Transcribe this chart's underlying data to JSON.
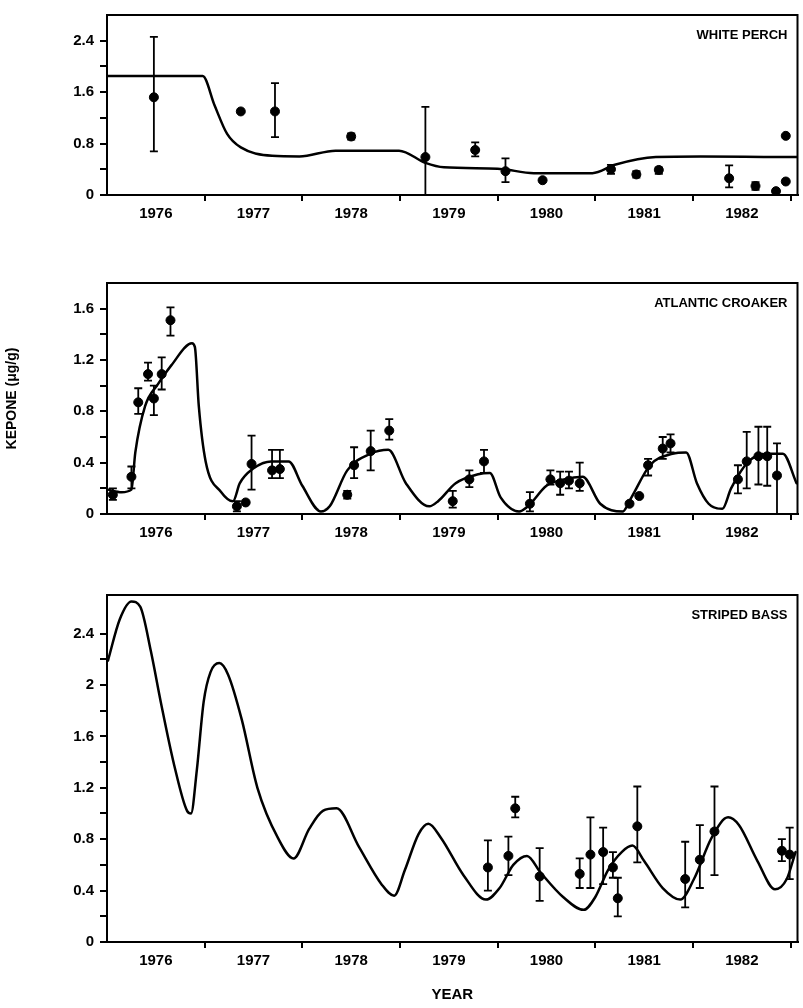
{
  "chart_data": [
    {
      "type": "scatter",
      "title": "WHITE PERCH",
      "xlim": [
        1976,
        1983.07
      ],
      "xticks": [
        {
          "value": 1976.5,
          "label": "1976"
        },
        {
          "value": 1977,
          "label": null
        },
        {
          "value": 1977.5,
          "label": "1977"
        },
        {
          "value": 1978,
          "label": null
        },
        {
          "value": 1978.5,
          "label": "1978"
        },
        {
          "value": 1979,
          "label": null
        },
        {
          "value": 1979.5,
          "label": "1979"
        },
        {
          "value": 1980,
          "label": null
        },
        {
          "value": 1980.5,
          "label": "1980"
        },
        {
          "value": 1981,
          "label": null
        },
        {
          "value": 1981.5,
          "label": "1981"
        },
        {
          "value": 1982,
          "label": null
        },
        {
          "value": 1982.5,
          "label": "1982"
        },
        {
          "value": 1983,
          "label": null
        }
      ],
      "ylim": [
        0,
        2.8
      ],
      "yticks": [
        0,
        {
          "value": 0.4,
          "label": null
        },
        0.8,
        {
          "value": 1.2,
          "label": null
        },
        1.6,
        {
          "value": 2.0,
          "label": null
        },
        2.4
      ],
      "grid": false,
      "series": [
        {
          "type": "line",
          "color": "#000000",
          "marker": "none",
          "line_style": "solid",
          "x": [
            1976.0,
            1976.98,
            1977.1,
            1977.23,
            1977.37,
            1977.69,
            1977.97,
            1978.34,
            1978.99,
            1979.26,
            1979.45,
            1980.0,
            1980.37,
            1980.97,
            1981.2,
            1981.62,
            1982.08,
            1982.98,
            1983.07
          ],
          "values": [
            1.85,
            1.85,
            1.4,
            0.95,
            0.74,
            0.61,
            0.6,
            0.69,
            0.69,
            0.5,
            0.43,
            0.41,
            0.34,
            0.34,
            0.47,
            0.59,
            0.6,
            0.59,
            0.59
          ]
        },
        {
          "type": "scatter",
          "color": "#000000",
          "marker": "circle",
          "x": [
            1976.48,
            1977.37,
            1977.72,
            1978.5,
            1979.26,
            1979.77,
            1980.08,
            1980.46,
            1981.16,
            1981.42,
            1981.65,
            1982.37,
            1982.64,
            1982.85,
            1982.95,
            1982.95
          ],
          "values": [
            1.52,
            1.3,
            1.3,
            0.91,
            0.59,
            0.7,
            0.37,
            0.23,
            0.4,
            0.32,
            0.39,
            0.26,
            0.14,
            0.06,
            0.92,
            0.21
          ],
          "errors": [
            [
              0.68,
              2.46
            ],
            null,
            [
              0.9,
              1.74
            ],
            [
              0.86,
              0.96
            ],
            [
              0,
              1.37
            ],
            [
              0.6,
              0.82
            ],
            [
              0.2,
              0.57
            ],
            null,
            [
              0.33,
              0.47
            ],
            [
              0.27,
              0.37
            ],
            [
              0.33,
              0.43
            ],
            [
              0.12,
              0.46
            ],
            [
              0.08,
              0.2
            ],
            null,
            null,
            null
          ]
        }
      ]
    },
    {
      "type": "scatter",
      "title": "ATLANTIC CROAKER",
      "ylabel": "KEPONE (μg/g)",
      "xlim": [
        1976,
        1983.07
      ],
      "xticks": [
        {
          "value": 1976.5,
          "label": "1976"
        },
        {
          "value": 1977,
          "label": null
        },
        {
          "value": 1977.5,
          "label": "1977"
        },
        {
          "value": 1978,
          "label": null
        },
        {
          "value": 1978.5,
          "label": "1978"
        },
        {
          "value": 1979,
          "label": null
        },
        {
          "value": 1979.5,
          "label": "1979"
        },
        {
          "value": 1980,
          "label": null
        },
        {
          "value": 1980.5,
          "label": "1980"
        },
        {
          "value": 1981,
          "label": null
        },
        {
          "value": 1981.5,
          "label": "1981"
        },
        {
          "value": 1982,
          "label": null
        },
        {
          "value": 1982.5,
          "label": "1982"
        },
        {
          "value": 1983,
          "label": null
        }
      ],
      "ylim": [
        0,
        1.8
      ],
      "yticks": [
        0,
        {
          "value": 0.2,
          "label": null
        },
        0.4,
        {
          "value": 0.6,
          "label": null
        },
        0.8,
        {
          "value": 1.0,
          "label": null
        },
        1.2,
        {
          "value": 1.4,
          "label": null
        },
        1.6
      ],
      "grid": false,
      "series": [
        {
          "type": "line",
          "color": "#000000",
          "marker": "none",
          "line_style": "solid",
          "x": [
            1976.01,
            1976.15,
            1976.25,
            1976.29,
            1976.39,
            1976.52,
            1976.66,
            1976.87,
            1976.9,
            1976.94,
            1977.01,
            1977.17,
            1977.29,
            1977.36,
            1977.49,
            1977.68,
            1977.86,
            1978.0,
            1978.19,
            1978.28,
            1978.46,
            1978.7,
            1978.88,
            1979.06,
            1979.3,
            1979.39,
            1979.57,
            1979.8,
            1979.92,
            1980.03,
            1980.22,
            1980.31,
            1980.5,
            1980.68,
            1980.87,
            1981.05,
            1981.28,
            1981.37,
            1981.56,
            1981.79,
            1981.93,
            1982.04,
            1982.16,
            1982.3,
            1982.39,
            1982.57,
            1982.76,
            1982.92,
            1983.06
          ],
          "values": [
            0.19,
            0.17,
            0.19,
            0.48,
            0.84,
            1.01,
            1.16,
            1.33,
            1.3,
            0.84,
            0.41,
            0.17,
            0.1,
            0.24,
            0.35,
            0.41,
            0.41,
            0.22,
            0.02,
            0.06,
            0.34,
            0.47,
            0.5,
            0.24,
            0.06,
            0.1,
            0.24,
            0.31,
            0.32,
            0.13,
            0.02,
            0.06,
            0.22,
            0.27,
            0.29,
            0.08,
            0.02,
            0.13,
            0.38,
            0.47,
            0.48,
            0.24,
            0.08,
            0.04,
            0.2,
            0.41,
            0.47,
            0.47,
            0.24
          ]
        },
        {
          "type": "scatter",
          "color": "#000000",
          "marker": "circle",
          "x": [
            1976.06,
            1976.25,
            1976.32,
            1976.42,
            1976.48,
            1976.56,
            1976.65,
            1977.33,
            1977.42,
            1977.48,
            1977.69,
            1977.77,
            1978.46,
            1978.53,
            1978.7,
            1978.89,
            1979.54,
            1979.71,
            1979.86,
            1980.33,
            1980.54,
            1980.64,
            1980.73,
            1980.84,
            1981.35,
            1981.45,
            1981.54,
            1981.69,
            1981.77,
            1982.46,
            1982.55,
            1982.67,
            1982.76,
            1982.86
          ],
          "values": [
            0.15,
            0.29,
            0.87,
            1.09,
            0.9,
            1.09,
            1.51,
            0.06,
            0.09,
            0.39,
            0.34,
            0.35,
            0.15,
            0.38,
            0.49,
            0.65,
            0.1,
            0.27,
            0.41,
            0.08,
            0.27,
            0.24,
            0.26,
            0.24,
            0.08,
            0.14,
            0.38,
            0.51,
            0.55,
            0.27,
            0.41,
            0.45,
            0.45,
            0.3
          ],
          "errors": [
            [
              0.11,
              0.2
            ],
            [
              0.2,
              0.37
            ],
            [
              0.78,
              0.98
            ],
            [
              1.04,
              1.18
            ],
            [
              0.77,
              1.0
            ],
            [
              0.97,
              1.22
            ],
            [
              1.39,
              1.61
            ],
            [
              0.02,
              0.1
            ],
            null,
            [
              0.19,
              0.61
            ],
            [
              0.28,
              0.5
            ],
            [
              0.28,
              0.5
            ],
            [
              0.12,
              0.18
            ],
            [
              0.28,
              0.52
            ],
            [
              0.34,
              0.65
            ],
            [
              0.58,
              0.74
            ],
            [
              0.05,
              0.18
            ],
            [
              0.21,
              0.34
            ],
            [
              0.32,
              0.5
            ],
            [
              0.02,
              0.17
            ],
            [
              0.23,
              0.34
            ],
            [
              0.15,
              0.33
            ],
            [
              0.2,
              0.33
            ],
            [
              0.18,
              0.4
            ],
            null,
            null,
            [
              0.3,
              0.43
            ],
            [
              0.43,
              0.6
            ],
            [
              0.48,
              0.62
            ],
            [
              0.16,
              0.38
            ],
            [
              0.2,
              0.64
            ],
            [
              0.23,
              0.68
            ],
            [
              0.22,
              0.68
            ],
            [
              0,
              0.55
            ]
          ]
        }
      ]
    },
    {
      "type": "scatter",
      "title": "STRIPED BASS",
      "xlabel": "YEAR",
      "xlim": [
        1976,
        1983.07
      ],
      "xticks": [
        {
          "value": 1976.5,
          "label": "1976"
        },
        {
          "value": 1977,
          "label": null
        },
        {
          "value": 1977.5,
          "label": "1977"
        },
        {
          "value": 1978,
          "label": null
        },
        {
          "value": 1978.5,
          "label": "1978"
        },
        {
          "value": 1979,
          "label": null
        },
        {
          "value": 1979.5,
          "label": "1979"
        },
        {
          "value": 1980,
          "label": null
        },
        {
          "value": 1980.5,
          "label": "1980"
        },
        {
          "value": 1981,
          "label": null
        },
        {
          "value": 1981.5,
          "label": "1981"
        },
        {
          "value": 1982,
          "label": null
        },
        {
          "value": 1982.5,
          "label": "1982"
        },
        {
          "value": 1983,
          "label": null
        }
      ],
      "ylim": [
        0,
        2.7
      ],
      "yticks": [
        0,
        {
          "value": 0.2,
          "label": null
        },
        0.4,
        {
          "value": 0.6,
          "label": null
        },
        0.8,
        {
          "value": 1.0,
          "label": null
        },
        1.2,
        {
          "value": 1.4,
          "label": null
        },
        1.6,
        {
          "value": 1.8,
          "label": null
        },
        2.0,
        {
          "value": 2.2,
          "label": null
        },
        2.4
      ],
      "grid": false,
      "series": [
        {
          "type": "line",
          "color": "#000000",
          "marker": "none",
          "line_style": "solid",
          "x": [
            1976.01,
            1976.13,
            1976.25,
            1976.34,
            1976.45,
            1976.55,
            1976.69,
            1976.82,
            1976.86,
            1976.92,
            1976.99,
            1977.06,
            1977.15,
            1977.24,
            1977.38,
            1977.54,
            1977.75,
            1977.91,
            1978.07,
            1978.21,
            1978.35,
            1978.58,
            1978.81,
            1978.94,
            1979.05,
            1979.19,
            1979.29,
            1979.42,
            1979.65,
            1979.88,
            1980.02,
            1980.16,
            1980.3,
            1980.44,
            1980.67,
            1980.88,
            1981.0,
            1981.13,
            1981.27,
            1981.38,
            1981.5,
            1981.69,
            1981.87,
            1982.01,
            1982.19,
            1982.36,
            1982.47,
            1982.66,
            1982.84,
            1982.96,
            1983.05
          ],
          "values": [
            2.19,
            2.51,
            2.65,
            2.61,
            2.26,
            1.87,
            1.37,
            1.02,
            1.0,
            1.34,
            1.87,
            2.1,
            2.17,
            2.08,
            1.73,
            1.2,
            0.81,
            0.65,
            0.88,
            1.02,
            1.04,
            0.74,
            0.45,
            0.36,
            0.56,
            0.84,
            0.92,
            0.81,
            0.52,
            0.33,
            0.42,
            0.6,
            0.67,
            0.54,
            0.35,
            0.25,
            0.35,
            0.56,
            0.7,
            0.75,
            0.63,
            0.42,
            0.33,
            0.49,
            0.81,
            0.97,
            0.91,
            0.63,
            0.41,
            0.49,
            0.7
          ]
        },
        {
          "type": "scatter",
          "color": "#000000",
          "marker": "circle",
          "x": [
            1979.9,
            1980.11,
            1980.18,
            1980.43,
            1980.84,
            1980.95,
            1981.08,
            1981.18,
            1981.23,
            1981.43,
            1981.92,
            1982.07,
            1982.22,
            1982.91,
            1982.99
          ],
          "values": [
            0.58,
            0.67,
            1.04,
            0.51,
            0.53,
            0.68,
            0.7,
            0.58,
            0.34,
            0.9,
            0.49,
            0.64,
            0.86,
            0.71,
            0.68
          ],
          "errors": [
            [
              0.4,
              0.79
            ],
            [
              0.52,
              0.82
            ],
            [
              0.97,
              1.13
            ],
            [
              0.32,
              0.73
            ],
            [
              0.42,
              0.65
            ],
            [
              0.42,
              0.97
            ],
            [
              0.45,
              0.89
            ],
            [
              0.5,
              0.7
            ],
            [
              0.2,
              0.5
            ],
            [
              0.62,
              1.21
            ],
            [
              0.27,
              0.78
            ],
            [
              0.42,
              0.91
            ],
            [
              0.52,
              1.21
            ],
            [
              0.63,
              0.8
            ],
            [
              0.49,
              0.89
            ]
          ]
        }
      ]
    }
  ]
}
